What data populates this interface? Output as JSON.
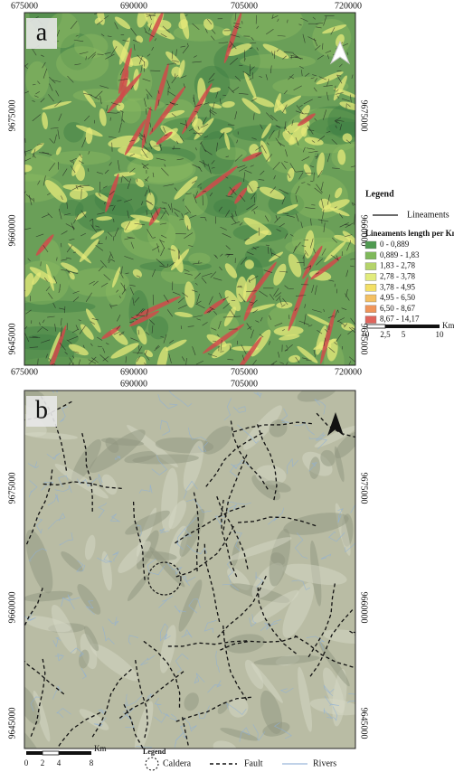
{
  "panel_a": {
    "label": "a",
    "top_x_labels": [
      "675000",
      "690000",
      "705000",
      "720000"
    ],
    "bottom_x_labels": [
      "675000",
      "690000",
      "705000",
      "720000"
    ],
    "left_y_labels": [
      "9675000",
      "9660000",
      "9645000"
    ],
    "right_y_labels": [
      "9675000",
      "9660000",
      "9645000"
    ],
    "legend": {
      "title": "Legend",
      "line_label": "Lineaments",
      "classes_title": "Lineaments length per Km",
      "classes": [
        "0 - 0,889",
        "0,889 - 1,83",
        "1,83 - 2,78",
        "2,78 - 3,78",
        "3,78 - 4,95",
        "4,95 - 6,50",
        "6,50 - 8,67",
        "8,67 - 14,17"
      ]
    },
    "scale": {
      "labels": [
        "0",
        "2,5",
        "5",
        "10"
      ],
      "unit": "Km"
    }
  },
  "panel_b": {
    "label": "b",
    "top_x_labels": [
      "690000",
      "705000"
    ],
    "left_y_labels": [
      "9675000",
      "9660000",
      "9645000"
    ],
    "right_y_labels": [
      "9675000",
      "9660000",
      "9645000"
    ],
    "scale": {
      "labels": [
        "0",
        "2",
        "4",
        "8"
      ],
      "unit": "Km"
    },
    "legend": {
      "title": "Legend",
      "items": [
        "Caldera",
        "Fault",
        "Rivers"
      ]
    }
  }
}
